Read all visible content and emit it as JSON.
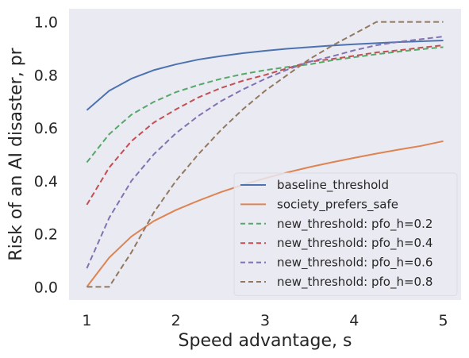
{
  "chart_data": {
    "type": "line",
    "title": "",
    "xlabel": "Speed advantage, s",
    "ylabel": "Risk of an AI disaster, pr",
    "xlim": [
      0.8,
      5.2
    ],
    "ylim": [
      -0.05,
      1.05
    ],
    "x_ticks": [
      "1",
      "2",
      "3",
      "4",
      "5"
    ],
    "y_ticks": [
      "0.0",
      "0.2",
      "0.4",
      "0.6",
      "0.8",
      "1.0"
    ],
    "grid": false,
    "background": "#EAEAF2",
    "legend_position": "lower-right",
    "x": [
      1.0,
      1.25,
      1.5,
      1.75,
      2.0,
      2.25,
      2.5,
      2.75,
      3.0,
      3.25,
      3.5,
      3.75,
      4.0,
      4.25,
      4.5,
      4.75,
      5.0
    ],
    "series": [
      {
        "name": "baseline_threshold",
        "color": "#4C72B0",
        "dash": "solid",
        "values": [
          0.667,
          0.74,
          0.786,
          0.818,
          0.84,
          0.858,
          0.871,
          0.882,
          0.891,
          0.899,
          0.905,
          0.911,
          0.916,
          0.92,
          0.924,
          0.927,
          0.93
        ]
      },
      {
        "name": "society_prefers_safe",
        "color": "#DD8452",
        "dash": "solid",
        "values": [
          0.0,
          0.11,
          0.19,
          0.248,
          0.29,
          0.325,
          0.357,
          0.385,
          0.41,
          0.432,
          0.452,
          0.47,
          0.487,
          0.503,
          0.518,
          0.532,
          0.55
        ]
      },
      {
        "name": "new_threshold: pfo_h=0.2",
        "color": "#55A868",
        "dash": "dashed",
        "values": [
          0.47,
          0.576,
          0.65,
          0.698,
          0.735,
          0.762,
          0.785,
          0.803,
          0.818,
          0.83,
          0.84,
          0.855,
          0.867,
          0.878,
          0.888,
          0.897,
          0.905
        ]
      },
      {
        "name": "new_threshold: pfo_h=0.4",
        "color": "#C44E52",
        "dash": "dashed",
        "values": [
          0.31,
          0.45,
          0.55,
          0.62,
          0.67,
          0.715,
          0.75,
          0.778,
          0.8,
          0.825,
          0.85,
          0.86,
          0.872,
          0.885,
          0.893,
          0.903,
          0.912
        ]
      },
      {
        "name": "new_threshold: pfo_h=0.6",
        "color": "#8172B3",
        "dash": "dashed",
        "values": [
          0.07,
          0.26,
          0.4,
          0.5,
          0.58,
          0.645,
          0.7,
          0.745,
          0.785,
          0.82,
          0.85,
          0.87,
          0.893,
          0.912,
          0.925,
          0.935,
          0.945
        ]
      },
      {
        "name": "new_threshold: pfo_h=0.8",
        "color": "#937860",
        "dash": "dashed",
        "values": [
          0.0,
          0.0,
          0.13,
          0.28,
          0.4,
          0.5,
          0.59,
          0.67,
          0.74,
          0.8,
          0.86,
          0.91,
          0.955,
          1.0,
          1.0,
          1.0,
          1.0
        ]
      }
    ]
  }
}
